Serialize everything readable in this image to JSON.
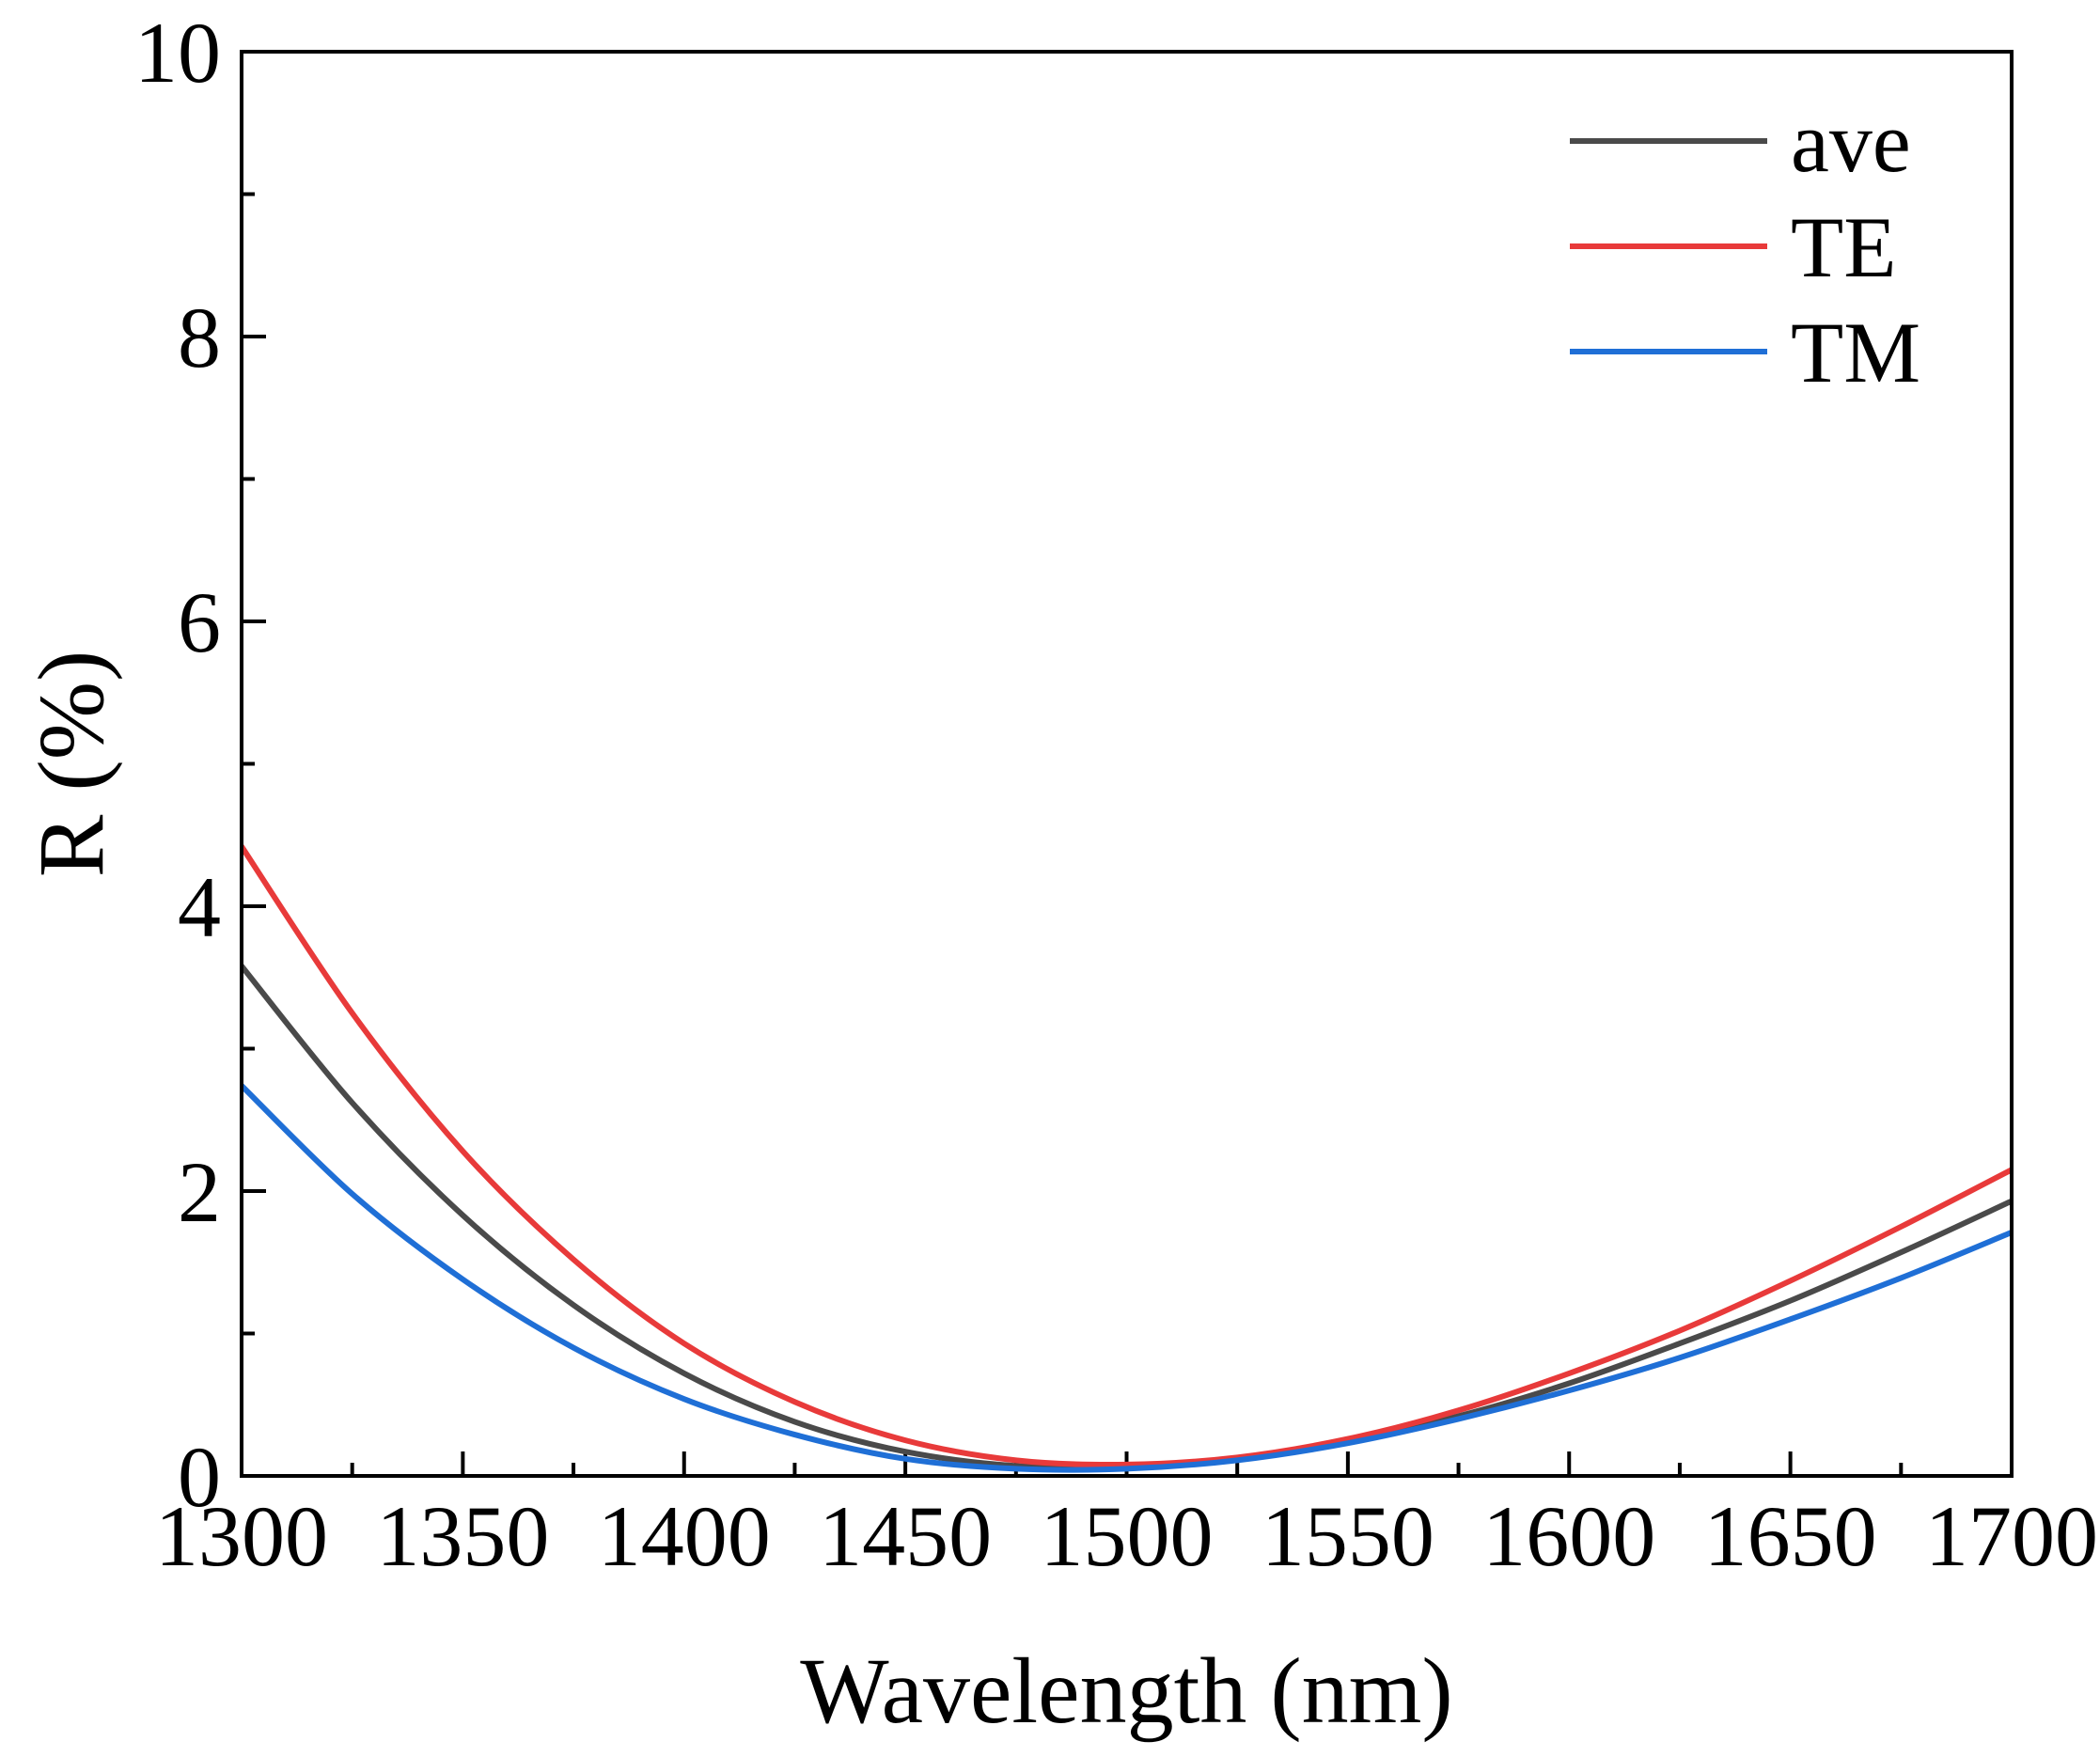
{
  "chart_data": {
    "type": "line",
    "title": "",
    "xlabel": "Wavelength (nm)",
    "ylabel": "R (%)",
    "xlim": [
      1300,
      1700
    ],
    "ylim": [
      0,
      10
    ],
    "xticks": [
      1300,
      1350,
      1400,
      1450,
      1500,
      1550,
      1600,
      1650,
      1700
    ],
    "yticks": [
      0,
      2,
      4,
      6,
      8,
      10
    ],
    "x_minor_step": 25,
    "y_minor_step": 1,
    "grid": false,
    "legend_position": "top-right",
    "series": [
      {
        "name": "ave",
        "color": "#4a4a4a",
        "x": [
          1300,
          1325,
          1350,
          1375,
          1400,
          1425,
          1450,
          1475,
          1500,
          1525,
          1550,
          1575,
          1600,
          1625,
          1650,
          1675,
          1700
        ],
        "values": [
          3.58,
          2.62,
          1.83,
          1.2,
          0.72,
          0.38,
          0.17,
          0.07,
          0.06,
          0.12,
          0.25,
          0.42,
          0.65,
          0.93,
          1.23,
          1.57,
          1.93
        ]
      },
      {
        "name": "TE",
        "color": "#e83a3a",
        "x": [
          1300,
          1325,
          1350,
          1375,
          1400,
          1425,
          1450,
          1475,
          1500,
          1525,
          1550,
          1575,
          1600,
          1625,
          1650,
          1675,
          1700
        ],
        "values": [
          4.42,
          3.25,
          2.28,
          1.52,
          0.93,
          0.52,
          0.25,
          0.11,
          0.08,
          0.13,
          0.26,
          0.46,
          0.72,
          1.02,
          1.37,
          1.75,
          2.15
        ]
      },
      {
        "name": "TM",
        "color": "#1f6fd6",
        "x": [
          1300,
          1325,
          1350,
          1375,
          1400,
          1425,
          1450,
          1475,
          1500,
          1525,
          1550,
          1575,
          1600,
          1625,
          1650,
          1675,
          1700
        ],
        "values": [
          2.74,
          1.98,
          1.38,
          0.9,
          0.54,
          0.29,
          0.12,
          0.05,
          0.05,
          0.11,
          0.23,
          0.4,
          0.6,
          0.83,
          1.1,
          1.39,
          1.71
        ]
      }
    ]
  }
}
